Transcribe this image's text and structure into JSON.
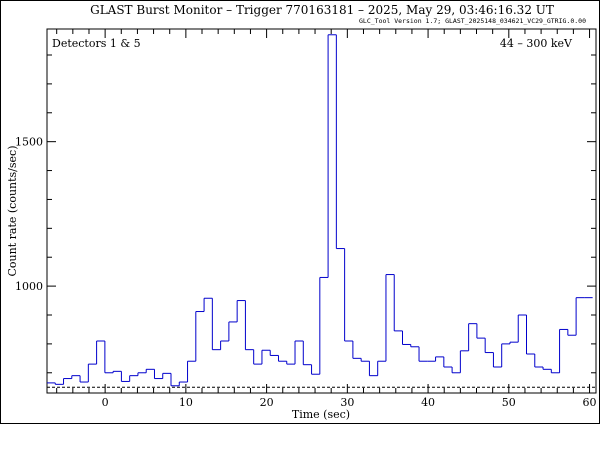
{
  "header": {
    "title": "GLAST Burst Monitor  –  Trigger 770163181  –  2025, May 29, 03:46:16.32 UT",
    "version": "GLC_Tool Version 1.7; GLAST_2025148_034621_VC29_GTRIG.0.00"
  },
  "chart_data": {
    "type": "line",
    "annotations": {
      "detectors": "Detectors 1 & 5",
      "energy": "44 – 300 keV"
    },
    "xlabel": "Time (sec)",
    "ylabel": "Count rate (counts/sec)",
    "xlim": [
      -7.2,
      60.8
    ],
    "ylim": [
      630,
      1890
    ],
    "xticks": [
      0,
      10,
      20,
      30,
      40,
      50,
      60
    ],
    "yticks": [
      1000,
      1500
    ],
    "grid": false,
    "background_level": 650,
    "series": [
      {
        "style": "histogram-steps",
        "color": "#0000cc",
        "bin_width": 1.024,
        "x_start": -7.2,
        "values": [
          665,
          660,
          680,
          690,
          668,
          730,
          810,
          700,
          705,
          670,
          690,
          700,
          712,
          680,
          698,
          655,
          668,
          740,
          912,
          958,
          780,
          810,
          876,
          950,
          780,
          730,
          778,
          760,
          740,
          730,
          810,
          728,
          695,
          1030,
          1870,
          1130,
          810,
          750,
          740,
          690,
          740,
          1040,
          845,
          798,
          790,
          740,
          740,
          755,
          720,
          700,
          776,
          870,
          820,
          770,
          720,
          800,
          806,
          900,
          765,
          720,
          712,
          700,
          850,
          830,
          960,
          960
        ]
      }
    ]
  }
}
